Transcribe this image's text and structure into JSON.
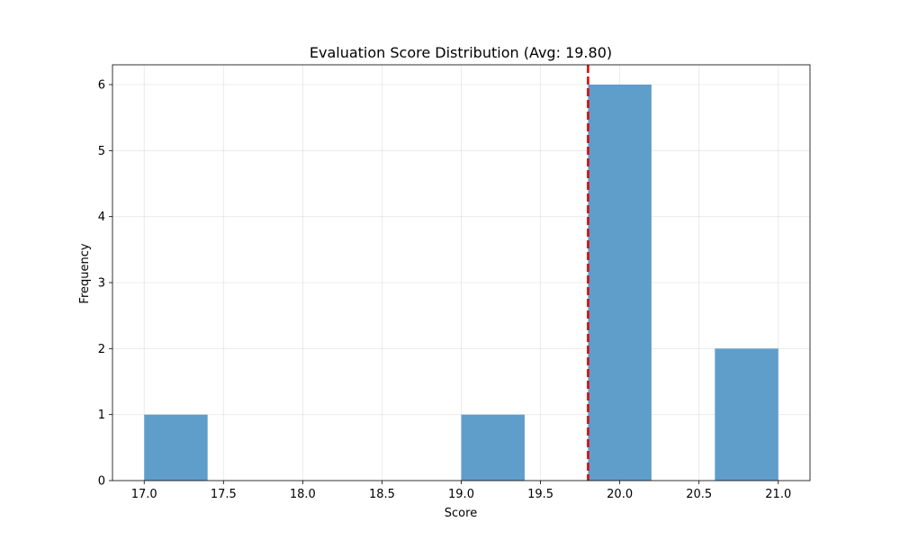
{
  "chart_data": {
    "type": "bar",
    "title": "Evaluation Score Distribution (Avg: 19.80)",
    "xlabel": "Score",
    "ylabel": "Frequency",
    "xlim": [
      16.8,
      21.2
    ],
    "ylim": [
      0,
      6.3
    ],
    "xticks": [
      17.0,
      17.5,
      18.0,
      18.5,
      19.0,
      19.5,
      20.0,
      20.5,
      21.0
    ],
    "xtick_labels": [
      "17.0",
      "17.5",
      "18.0",
      "18.5",
      "19.0",
      "19.5",
      "20.0",
      "20.5",
      "21.0"
    ],
    "yticks": [
      0,
      1,
      2,
      3,
      4,
      5,
      6
    ],
    "ytick_labels": [
      "0",
      "1",
      "2",
      "3",
      "4",
      "5",
      "6"
    ],
    "bins": [
      {
        "start": 17.0,
        "end": 17.4,
        "count": 1
      },
      {
        "start": 19.0,
        "end": 19.4,
        "count": 1
      },
      {
        "start": 19.8,
        "end": 20.2,
        "count": 6
      },
      {
        "start": 20.6,
        "end": 21.0,
        "count": 2
      }
    ],
    "average_line": {
      "x": 19.8,
      "style": "dashed",
      "color": "#e00000"
    },
    "bar_color": "#5f9ecb",
    "grid": true
  }
}
